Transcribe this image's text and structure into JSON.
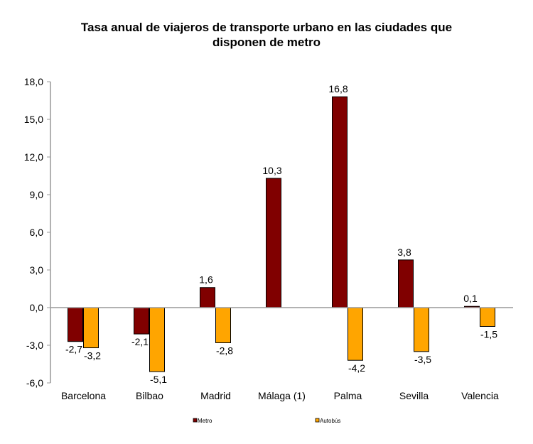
{
  "chart_data": {
    "type": "bar",
    "title": "Tasa anual de viajeros de transporte urbano en las ciudades que disponen de metro",
    "title_lines": [
      "Tasa anual de viajeros de transporte urbano en las ciudades que",
      "disponen de metro"
    ],
    "categories": [
      "Barcelona",
      "Bilbao",
      "Madrid",
      "Málaga (1)",
      "Palma",
      "Sevilla",
      "Valencia"
    ],
    "series": [
      {
        "name": "Metro",
        "color": "#800000",
        "values": [
          -2.7,
          -2.1,
          1.6,
          10.3,
          16.8,
          3.8,
          0.1
        ],
        "labels": [
          "-2,7",
          "-2,1",
          "1,6",
          "10,3",
          "16,8",
          "3,8",
          "0,1"
        ]
      },
      {
        "name": "Autobús",
        "color": "#FFA500",
        "values": [
          -3.2,
          -5.1,
          -2.8,
          null,
          -4.2,
          -3.5,
          -1.5
        ],
        "labels": [
          "-3,2",
          "-5,1",
          "-2,8",
          null,
          "-4,2",
          "-3,5",
          "-1,5"
        ]
      }
    ],
    "ylim": [
      -6,
      18
    ],
    "yticks": [
      18,
      15,
      12,
      9,
      6,
      3,
      0,
      -3,
      -6
    ],
    "ytick_labels": [
      "18,0",
      "15,0",
      "12,0",
      "9,0",
      "6,0",
      "3,0",
      "0,0",
      "-3,0",
      "-6,0"
    ],
    "xlabel": "",
    "ylabel": "",
    "grid": false,
    "legend": "bottom"
  }
}
